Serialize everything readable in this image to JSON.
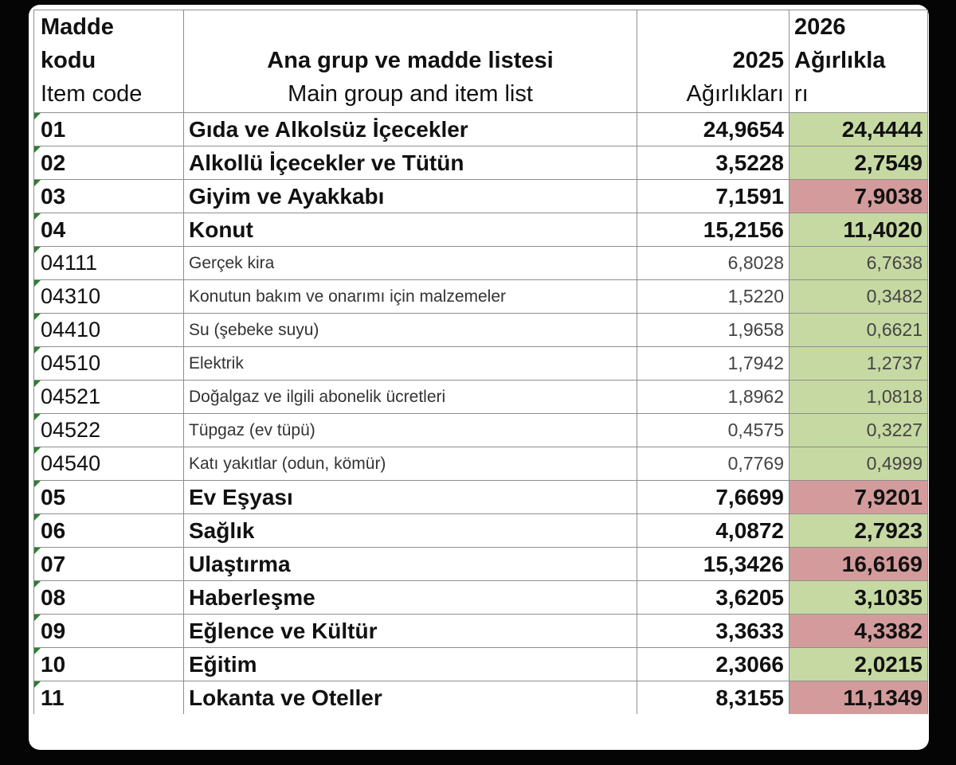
{
  "header": {
    "code_line1": "Madde",
    "code_line2": "kodu",
    "code_line3": "Item code",
    "list_line1": "Ana grup ve madde listesi",
    "list_line2": "Main group and item list",
    "col2025_line1": "2025",
    "col2025_line2": "Ağırlıkları",
    "col2026_line1": "2026",
    "col2026_line2": "Ağırlıkla",
    "col2026_line3": "rı"
  },
  "colors": {
    "increase_fill": "#d39b9b",
    "decrease_fill": "#c6d9a2"
  },
  "rows": [
    {
      "code": "01",
      "name": "Gıda ve Alkolsüz İçecekler",
      "w2025": "24,9654",
      "w2026": "24,4444",
      "level": "major",
      "trend": "green"
    },
    {
      "code": "02",
      "name": "Alkollü İçecekler ve Tütün",
      "w2025": "3,5228",
      "w2026": "2,7549",
      "level": "major",
      "trend": "green"
    },
    {
      "code": "03",
      "name": "Giyim ve Ayakkabı",
      "w2025": "7,1591",
      "w2026": "7,9038",
      "level": "major",
      "trend": "red"
    },
    {
      "code": "04",
      "name": "Konut",
      "w2025": "15,2156",
      "w2026": "11,4020",
      "level": "major",
      "trend": "green"
    },
    {
      "code": "04111",
      "name": "Gerçek kira",
      "w2025": "6,8028",
      "w2026": "6,7638",
      "level": "minor",
      "trend": "green"
    },
    {
      "code": "04310",
      "name": "Konutun bakım ve onarımı için malzemeler",
      "w2025": "1,5220",
      "w2026": "0,3482",
      "level": "minor",
      "trend": "green"
    },
    {
      "code": "04410",
      "name": "Su (şebeke suyu)",
      "w2025": "1,9658",
      "w2026": "0,6621",
      "level": "minor",
      "trend": "green"
    },
    {
      "code": "04510",
      "name": "Elektrik",
      "w2025": "1,7942",
      "w2026": "1,2737",
      "level": "minor",
      "trend": "green"
    },
    {
      "code": "04521",
      "name": "Doğalgaz ve ilgili abonelik ücretleri",
      "w2025": "1,8962",
      "w2026": "1,0818",
      "level": "minor",
      "trend": "green"
    },
    {
      "code": "04522",
      "name": "Tüpgaz (ev tüpü)",
      "w2025": "0,4575",
      "w2026": "0,3227",
      "level": "minor",
      "trend": "green"
    },
    {
      "code": "04540",
      "name": "Katı yakıtlar (odun, kömür)",
      "w2025": "0,7769",
      "w2026": "0,4999",
      "level": "minor",
      "trend": "green"
    },
    {
      "code": "05",
      "name": "Ev Eşyası",
      "w2025": "7,6699",
      "w2026": "7,9201",
      "level": "major",
      "trend": "red"
    },
    {
      "code": "06",
      "name": "Sağlık",
      "w2025": "4,0872",
      "w2026": "2,7923",
      "level": "major",
      "trend": "green"
    },
    {
      "code": "07",
      "name": "Ulaştırma",
      "w2025": "15,3426",
      "w2026": "16,6169",
      "level": "major",
      "trend": "red"
    },
    {
      "code": "08",
      "name": "Haberleşme",
      "w2025": "3,6205",
      "w2026": "3,1035",
      "level": "major",
      "trend": "green"
    },
    {
      "code": "09",
      "name": "Eğlence ve Kültür",
      "w2025": "3,3633",
      "w2026": "4,3382",
      "level": "major",
      "trend": "red"
    },
    {
      "code": "10",
      "name": "Eğitim",
      "w2025": "2,3066",
      "w2026": "2,0215",
      "level": "major",
      "trend": "green"
    },
    {
      "code": "11",
      "name": "Lokanta ve Oteller",
      "w2025": "8,3155",
      "w2026": "11,1349",
      "level": "major",
      "trend": "red"
    }
  ]
}
